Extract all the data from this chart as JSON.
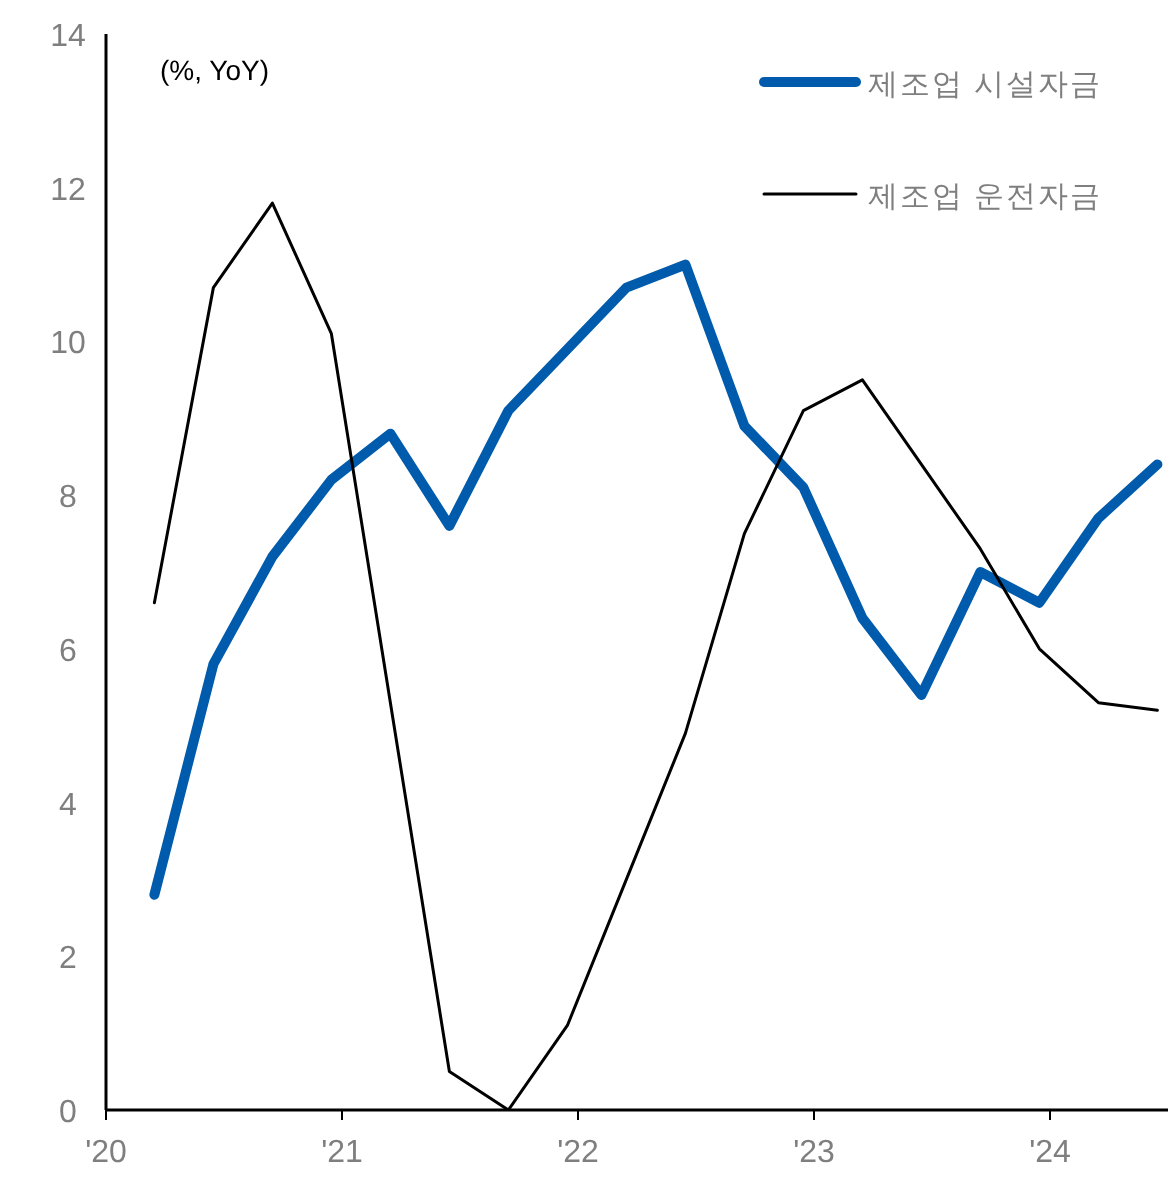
{
  "chart_data": {
    "type": "line",
    "annotations": [
      "(%, YoY)"
    ],
    "x": [
      "2020-03-15",
      "2020-06-15",
      "2020-09-15",
      "2020-12-15",
      "2021-03-15",
      "2021-06-15",
      "2021-09-15",
      "2021-12-15",
      "2022-03-15",
      "2022-06-15",
      "2022-09-15",
      "2022-12-15",
      "2023-03-15",
      "2023-06-15",
      "2023-09-15",
      "2023-12-15",
      "2024-03-15",
      "2024-06-15"
    ],
    "series": [
      {
        "name": "제조업 시설자금",
        "color": "#005bac",
        "values": [
          2.8,
          5.8,
          7.2,
          8.2,
          8.8,
          7.6,
          9.1,
          9.9,
          10.7,
          11.0,
          8.9,
          8.1,
          6.4,
          5.4,
          7.0,
          6.6,
          7.7,
          8.4
        ]
      },
      {
        "name": "제조업 운전자금",
        "color": "#000000",
        "values": [
          6.6,
          10.7,
          11.8,
          10.1,
          5.3,
          0.5,
          0.0,
          1.1,
          3.0,
          4.9,
          7.5,
          9.1,
          9.5,
          8.4,
          7.3,
          6.0,
          5.3,
          5.2
        ]
      }
    ],
    "xlim": [
      "2020-01-01",
      "2024-07-01"
    ],
    "ylim": [
      0,
      14
    ],
    "yticks": [
      0,
      2,
      4,
      6,
      8,
      10,
      12,
      14
    ],
    "xticks": [
      {
        "value": "2020-01-01",
        "label": "'20"
      },
      {
        "value": "2021-01-01",
        "label": "'21"
      },
      {
        "value": "2022-01-01",
        "label": "'22"
      },
      {
        "value": "2023-01-01",
        "label": "'23"
      },
      {
        "value": "2024-01-01",
        "label": "'24"
      }
    ],
    "grid": false,
    "legend": "top right",
    "line_style": "solid",
    "marker": "none"
  }
}
